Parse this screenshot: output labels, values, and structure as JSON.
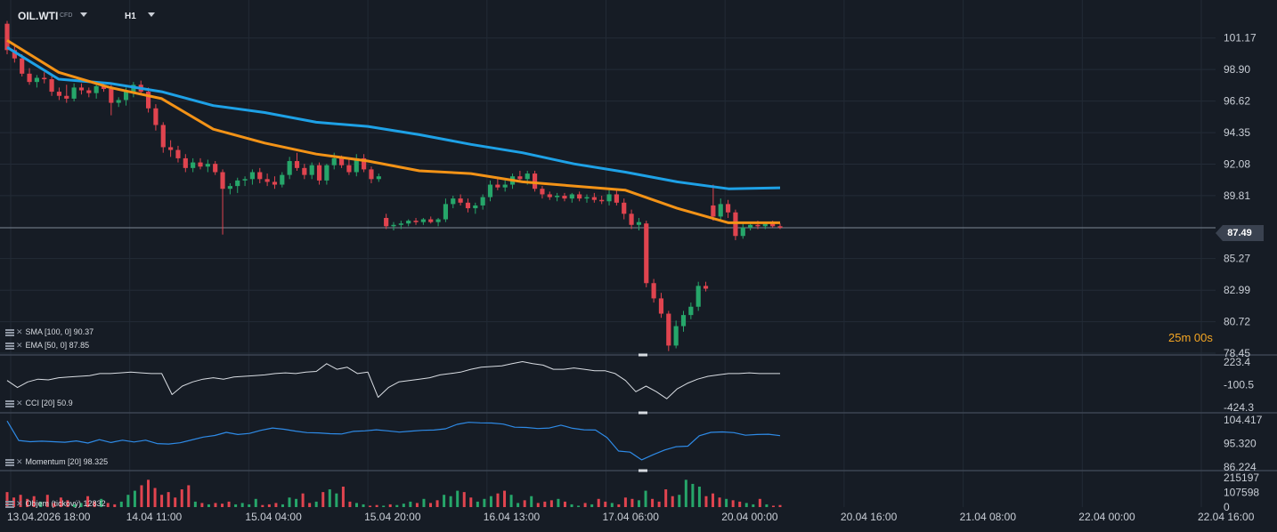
{
  "header": {
    "symbol": "OIL.WTI",
    "symbol_type": "CFD",
    "timeframe": "H1"
  },
  "legends": {
    "sma": "SMA [100, 0] 90.37",
    "ema": "EMA [50, 0] 87.85",
    "cci": "CCI [20] 50.9",
    "momentum": "Momentum [20] 98.325",
    "volume": "Objem (tickový) 12832"
  },
  "countdown": {
    "number": "25",
    "text": "m 00s"
  },
  "current_price": "87.49",
  "colors": {
    "background": "#161c25",
    "up": "#26a66a",
    "down": "#e0444f",
    "sma": "#1ea1e6",
    "ema": "#f39317",
    "cci": "#d9dde3",
    "momentum": "#2e8ae6",
    "countdown": "#f5a623"
  },
  "chart_data": {
    "type": "candlestick",
    "y_ticks": [
      "101.17",
      "98.90",
      "96.62",
      "94.35",
      "92.08",
      "89.81",
      "87.49",
      "85.27",
      "82.99",
      "80.72",
      "78.45"
    ],
    "ylim": [
      78.45,
      102.5
    ],
    "x_ticks": [
      "13.04.2026 18:00",
      "14.04 11:00",
      "15.04 04:00",
      "15.04 20:00",
      "16.04 13:00",
      "17.04 06:00",
      "20.04 00:00",
      "20.04 16:00",
      "21.04 08:00",
      "22.04 00:00",
      "22.04 16:00"
    ],
    "candles": [
      [
        102.2,
        102.4,
        100.0,
        100.3
      ],
      [
        100.3,
        100.7,
        99.4,
        99.7
      ],
      [
        99.7,
        100.0,
        98.4,
        98.6
      ],
      [
        98.6,
        99.0,
        97.8,
        98.0
      ],
      [
        98.0,
        98.5,
        97.6,
        98.3
      ],
      [
        98.3,
        98.7,
        97.9,
        98.2
      ],
      [
        98.2,
        98.5,
        97.0,
        97.3
      ],
      [
        97.3,
        97.6,
        96.7,
        97.0
      ],
      [
        97.0,
        97.8,
        96.5,
        96.8
      ],
      [
        96.8,
        97.9,
        96.6,
        97.6
      ],
      [
        97.6,
        97.9,
        97.1,
        97.4
      ],
      [
        97.4,
        97.6,
        96.9,
        97.2
      ],
      [
        97.2,
        97.9,
        96.8,
        97.7
      ],
      [
        97.7,
        98.0,
        97.3,
        97.5
      ],
      [
        97.5,
        97.8,
        95.6,
        96.5
      ],
      [
        96.5,
        96.9,
        96.2,
        96.7
      ],
      [
        96.7,
        97.6,
        96.3,
        97.3
      ],
      [
        97.3,
        98.0,
        96.9,
        97.8
      ],
      [
        97.8,
        98.1,
        97.1,
        97.3
      ],
      [
        97.3,
        97.6,
        95.8,
        96.1
      ],
      [
        96.1,
        96.4,
        94.5,
        94.9
      ],
      [
        94.9,
        95.1,
        92.9,
        93.3
      ],
      [
        93.3,
        93.8,
        92.6,
        93.1
      ],
      [
        93.1,
        93.4,
        92.2,
        92.5
      ],
      [
        92.5,
        92.8,
        91.5,
        91.8
      ],
      [
        91.8,
        92.5,
        91.5,
        92.2
      ],
      [
        92.2,
        92.5,
        91.7,
        91.9
      ],
      [
        91.9,
        92.4,
        91.5,
        92.1
      ],
      [
        92.1,
        92.3,
        91.3,
        91.5
      ],
      [
        91.5,
        91.7,
        87.0,
        90.3
      ],
      [
        90.3,
        90.7,
        89.9,
        90.5
      ],
      [
        90.5,
        91.1,
        90.0,
        90.9
      ],
      [
        90.9,
        91.2,
        90.5,
        91.0
      ],
      [
        91.0,
        91.7,
        90.6,
        91.5
      ],
      [
        91.5,
        91.8,
        90.7,
        91.0
      ],
      [
        91.0,
        91.4,
        90.5,
        90.8
      ],
      [
        90.8,
        91.2,
        90.3,
        90.6
      ],
      [
        90.6,
        91.5,
        90.4,
        91.3
      ],
      [
        91.3,
        92.6,
        91.0,
        92.3
      ],
      [
        92.3,
        92.9,
        91.6,
        91.8
      ],
      [
        91.8,
        92.1,
        91.0,
        91.3
      ],
      [
        91.3,
        92.2,
        91.0,
        92.0
      ],
      [
        92.0,
        92.2,
        90.6,
        90.9
      ],
      [
        90.9,
        92.1,
        90.6,
        92.0
      ],
      [
        92.0,
        92.9,
        91.7,
        92.5
      ],
      [
        92.5,
        92.7,
        91.8,
        92.0
      ],
      [
        92.0,
        92.4,
        91.3,
        91.5
      ],
      [
        91.5,
        92.8,
        91.2,
        92.5
      ],
      [
        92.5,
        92.8,
        91.5,
        91.7
      ],
      [
        91.7,
        91.9,
        90.7,
        91.0
      ],
      [
        91.0,
        91.4,
        90.8,
        91.2
      ],
      [
        88.2,
        88.5,
        87.4,
        87.6
      ],
      [
        87.6,
        87.9,
        87.3,
        87.7
      ],
      [
        87.7,
        88.0,
        87.4,
        87.8
      ],
      [
        87.8,
        88.1,
        87.6,
        88.0
      ],
      [
        88.0,
        88.2,
        87.7,
        87.9
      ],
      [
        87.9,
        88.2,
        87.7,
        88.1
      ],
      [
        88.1,
        88.3,
        87.8,
        87.9
      ],
      [
        87.9,
        88.2,
        87.6,
        88.1
      ],
      [
        88.1,
        89.6,
        87.9,
        89.2
      ],
      [
        89.2,
        89.8,
        88.9,
        89.6
      ],
      [
        89.6,
        89.9,
        89.1,
        89.3
      ],
      [
        89.3,
        89.6,
        88.6,
        88.9
      ],
      [
        88.9,
        89.3,
        88.5,
        89.1
      ],
      [
        89.1,
        89.9,
        88.8,
        89.7
      ],
      [
        89.7,
        90.9,
        89.4,
        90.6
      ],
      [
        90.6,
        91.0,
        90.2,
        90.4
      ],
      [
        90.4,
        90.9,
        90.1,
        90.6
      ],
      [
        90.6,
        91.4,
        90.3,
        91.2
      ],
      [
        91.2,
        91.6,
        90.8,
        91.0
      ],
      [
        91.0,
        91.6,
        90.6,
        91.4
      ],
      [
        91.4,
        91.6,
        90.1,
        90.3
      ],
      [
        90.3,
        90.5,
        89.6,
        89.9
      ],
      [
        89.9,
        90.1,
        89.5,
        89.7
      ],
      [
        89.7,
        90.0,
        89.4,
        89.8
      ],
      [
        89.8,
        90.0,
        89.4,
        89.6
      ],
      [
        89.6,
        90.0,
        89.3,
        89.9
      ],
      [
        89.9,
        90.1,
        89.4,
        89.6
      ],
      [
        89.6,
        89.9,
        89.3,
        89.7
      ],
      [
        89.7,
        90.0,
        89.3,
        89.5
      ],
      [
        89.5,
        89.8,
        89.2,
        89.4
      ],
      [
        89.4,
        90.2,
        89.1,
        89.9
      ],
      [
        89.9,
        90.2,
        89.1,
        89.3
      ],
      [
        89.3,
        89.6,
        88.1,
        88.5
      ],
      [
        88.5,
        88.8,
        87.4,
        87.7
      ],
      [
        87.7,
        88.2,
        87.3,
        87.9
      ],
      [
        87.8,
        88.0,
        83.2,
        83.5
      ],
      [
        83.5,
        83.8,
        82.1,
        82.4
      ],
      [
        82.4,
        82.8,
        81.0,
        81.3
      ],
      [
        81.3,
        81.5,
        78.6,
        79.0
      ],
      [
        79.0,
        80.8,
        78.8,
        80.4
      ],
      [
        80.4,
        81.5,
        80.0,
        81.2
      ],
      [
        81.2,
        82.1,
        80.9,
        81.8
      ],
      [
        81.8,
        83.6,
        81.5,
        83.3
      ],
      [
        83.3,
        83.6,
        82.9,
        83.1
      ],
      [
        89.1,
        90.6,
        88.0,
        88.3
      ],
      [
        88.3,
        89.6,
        88.0,
        89.2
      ],
      [
        89.2,
        89.5,
        88.2,
        88.6
      ],
      [
        88.6,
        88.8,
        86.6,
        86.9
      ],
      [
        86.9,
        87.8,
        86.7,
        87.5
      ],
      [
        87.5,
        87.9,
        87.3,
        87.7
      ],
      [
        87.7,
        88.0,
        87.4,
        87.6
      ],
      [
        87.6,
        87.9,
        87.4,
        87.8
      ],
      [
        87.8,
        88.0,
        87.5,
        87.6
      ],
      [
        87.6,
        87.8,
        87.4,
        87.5
      ]
    ],
    "sma_label": "SMA [100, 0]",
    "ema_label": "EMA [50, 0]",
    "sma": [
      100.5,
      98.2,
      97.9,
      97.3,
      96.3,
      95.8,
      95.1,
      94.8,
      94.2,
      93.5,
      92.9,
      92.1,
      91.5,
      90.8,
      90.3,
      90.37
    ],
    "ema": [
      101.0,
      98.7,
      97.6,
      96.8,
      94.6,
      93.6,
      92.8,
      92.3,
      91.6,
      91.4,
      90.8,
      90.5,
      90.2,
      88.9,
      87.85,
      87.85
    ],
    "cci": {
      "label": "CCI [20]",
      "y_ticks": [
        "223.4",
        "-100.5",
        "-424.3"
      ],
      "ylim": [
        -424.3,
        223.4
      ],
      "values": [
        -40,
        -140,
        -60,
        -20,
        -30,
        0,
        10,
        20,
        30,
        60,
        60,
        70,
        80,
        70,
        60,
        60,
        -240,
        -120,
        -60,
        -20,
        0,
        -20,
        10,
        20,
        30,
        40,
        60,
        70,
        60,
        80,
        90,
        200,
        120,
        150,
        60,
        80,
        -280,
        -140,
        -60,
        -40,
        -20,
        0,
        40,
        60,
        80,
        120,
        150,
        160,
        170,
        200,
        230,
        200,
        180,
        120,
        120,
        140,
        120,
        100,
        100,
        60,
        -40,
        -200,
        -120,
        -200,
        -300,
        -160,
        -80,
        -20,
        20,
        40,
        60,
        60,
        70,
        60,
        60,
        60
      ],
      "current": "50.9"
    },
    "momentum": {
      "label": "Momentum [20]",
      "y_ticks": [
        "104.417",
        "95.320",
        "86.224"
      ],
      "ylim": [
        86.224,
        104.417
      ],
      "values": [
        104.0,
        96.5,
        96.0,
        96.2,
        96.0,
        95.8,
        96.3,
        95.5,
        96.8,
        95.7,
        96.6,
        95.9,
        96.6,
        95.3,
        95.1,
        95.6,
        96.7,
        97.8,
        98.4,
        99.6,
        98.8,
        99.2,
        100.4,
        101.3,
        100.8,
        100.1,
        99.5,
        99.4,
        99.1,
        99.0,
        100.0,
        100.2,
        100.6,
        100.2,
        99.7,
        100.1,
        100.4,
        100.5,
        101.0,
        102.7,
        103.5,
        103.3,
        103.2,
        102.8,
        101.6,
        101.5,
        101.1,
        101.3,
        102.4,
        101.2,
        100.6,
        100.5,
        97.6,
        92.4,
        92.0,
        89.0,
        91.0,
        92.8,
        94.1,
        94.3,
        98.3,
        99.6,
        99.8,
        99.5,
        98.5,
        98.8,
        98.9,
        98.325
      ],
      "current": "98.325"
    },
    "volume": {
      "label": "Objem (tickový)",
      "y_ticks": [
        "215197",
        "107598",
        "0"
      ],
      "ylim": [
        0,
        215197
      ],
      "values": [
        110000,
        70000,
        90000,
        60000,
        80000,
        40000,
        90000,
        30000,
        70000,
        50000,
        20000,
        30000,
        80000,
        40000,
        60000,
        30000,
        20000,
        40000,
        90000,
        120000,
        160000,
        200000,
        140000,
        90000,
        110000,
        70000,
        130000,
        160000,
        40000,
        30000,
        20000,
        30000,
        25000,
        40000,
        20000,
        30000,
        20000,
        60000,
        15000,
        20000,
        30000,
        20000,
        70000,
        60000,
        100000,
        30000,
        40000,
        110000,
        130000,
        100000,
        150000,
        40000,
        30000,
        20000,
        10000,
        15000,
        10000,
        20000,
        15000,
        25000,
        40000,
        30000,
        60000,
        30000,
        50000,
        90000,
        80000,
        120000,
        110000,
        70000,
        40000,
        60000,
        80000,
        100000,
        120000,
        90000,
        30000,
        50000,
        80000,
        30000,
        40000,
        50000,
        60000,
        40000,
        20000,
        10000,
        30000,
        20000,
        60000,
        40000,
        30000,
        20000,
        70000,
        60000,
        50000,
        120000,
        60000,
        40000,
        130000,
        80000,
        90000,
        200000,
        170000,
        150000,
        80000,
        100000,
        70000,
        60000,
        50000,
        40000,
        30000,
        20000,
        60000,
        20000,
        10000,
        15000
      ],
      "current": "12832"
    }
  }
}
